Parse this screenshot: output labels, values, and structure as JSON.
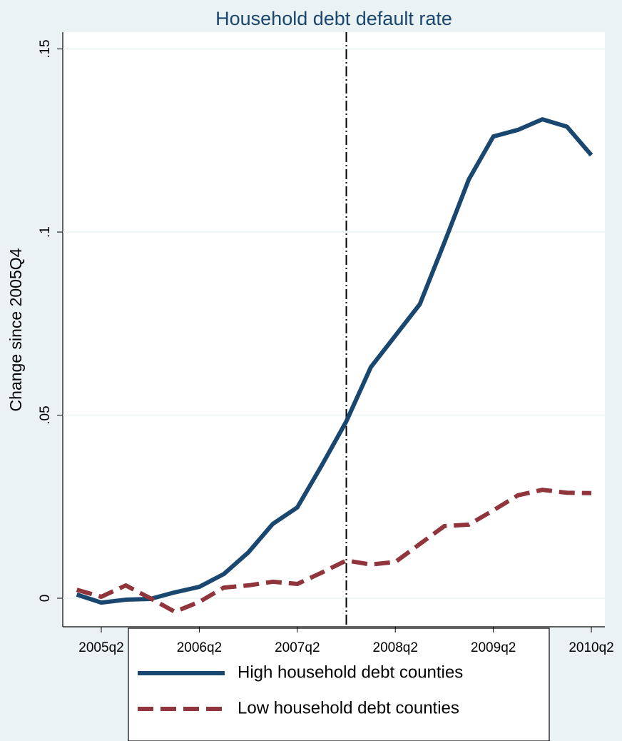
{
  "chart_data": {
    "type": "line",
    "title": "Household debt default rate",
    "y_label": "Change since 2005Q4",
    "x": [
      2005.0,
      2005.25,
      2005.5,
      2005.75,
      2006.0,
      2006.25,
      2006.5,
      2006.75,
      2007.0,
      2007.25,
      2007.5,
      2007.75,
      2008.0,
      2008.25,
      2008.5,
      2008.75,
      2009.0,
      2009.25,
      2009.5,
      2009.75,
      2010.0,
      2010.25
    ],
    "series": [
      {
        "name": "High household debt counties",
        "color": "#1a476f",
        "dash": false,
        "values": [
          0.001,
          -0.0012,
          -0.0004,
          -0.0002,
          0.0016,
          0.0031,
          0.0066,
          0.0125,
          0.0203,
          0.0248,
          0.0363,
          0.0483,
          0.0631,
          0.0717,
          0.0803,
          0.0971,
          0.1144,
          0.1261,
          0.1279,
          0.1308,
          0.1288,
          0.121
        ]
      },
      {
        "name": "Low household debt counties",
        "color": "#90353b",
        "dash": true,
        "values": [
          0.0023,
          0.0004,
          0.0035,
          0,
          -0.0037,
          -0.001,
          0.0029,
          0.0035,
          0.0045,
          0.0039,
          0.007,
          0.0103,
          0.0092,
          0.0099,
          0.0148,
          0.0197,
          0.0201,
          0.024,
          0.0281,
          0.0296,
          0.0288,
          0.0287
        ]
      }
    ],
    "vline": 2007.75,
    "xlim": [
      2004.857,
      2010.388
    ],
    "xticks": [
      {
        "value": 2005.25,
        "label": "2005q2"
      },
      {
        "value": 2006.25,
        "label": "2006q2"
      },
      {
        "value": 2007.25,
        "label": "2007q2"
      },
      {
        "value": 2008.25,
        "label": "2008q2"
      },
      {
        "value": 2009.25,
        "label": "2009q2"
      },
      {
        "value": 2010.25,
        "label": "2010q2"
      }
    ],
    "ylim": [
      -0.0078,
      0.1546
    ],
    "yticks": [
      0,
      {
        "value": 0.05,
        "label": ".05"
      },
      {
        "value": 0.1,
        "label": ".1"
      },
      {
        "value": 0.15,
        "label": ".15"
      }
    ],
    "grid": true
  }
}
